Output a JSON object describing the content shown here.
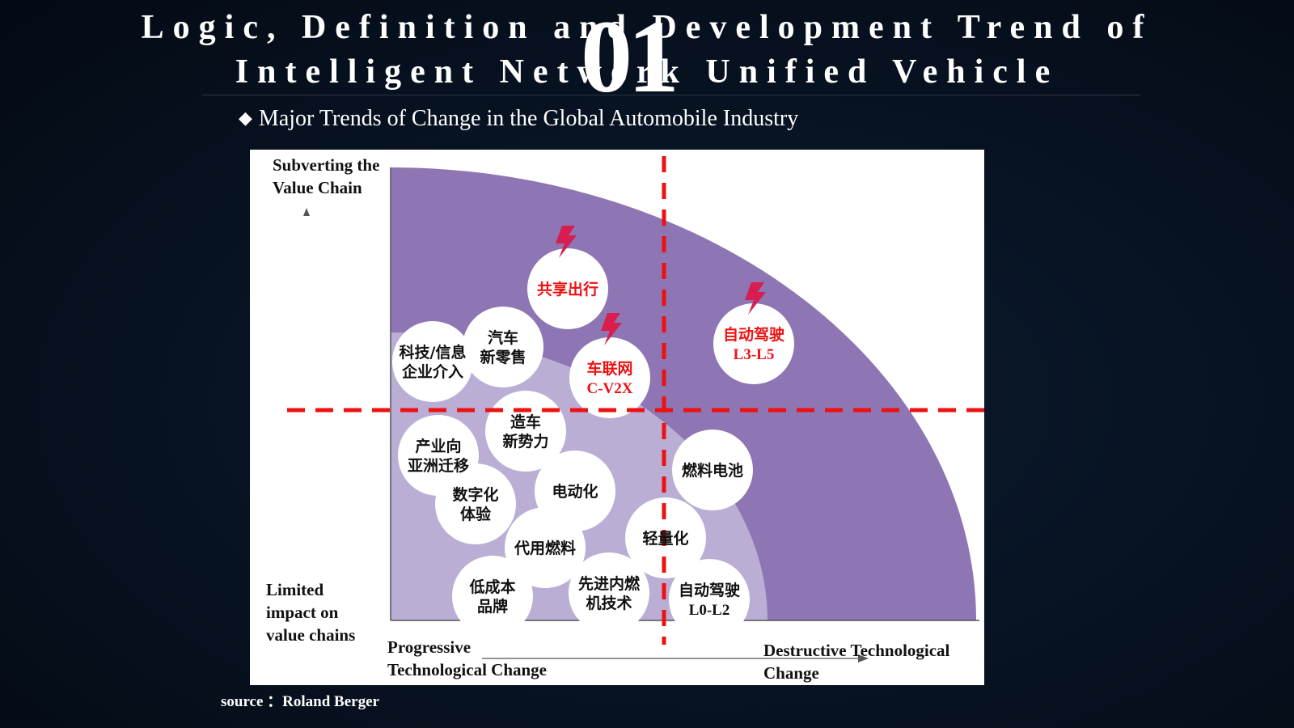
{
  "header": {
    "title_line1": "Logic, Definition and Development Trend of",
    "title_line2": "Intelligent Network Unified Vehicle",
    "section_number": "01",
    "subtitle_bullet": "◆",
    "subtitle": "Major Trends of Change in the Global Automobile Industry"
  },
  "diagram": {
    "y_axis_top_label": [
      "Subverting the",
      "Value Chain"
    ],
    "y_axis_bottom_label": [
      "Limited",
      "impact on",
      "value chains"
    ],
    "x_axis_left_label": [
      "Progressive",
      "Technological Change"
    ],
    "x_axis_right_label": [
      "Destructive Technological",
      "Change"
    ],
    "colors": {
      "outer_zone": "#8d76b3",
      "inner_zone": "#baaed5",
      "bubble": "#ffffff",
      "highlight_text": "#ee1111",
      "lightning": "#d81e50",
      "divider": "#ee1111",
      "normal_text": "#111111"
    },
    "bubbles": [
      {
        "lines": [
          "共享出行"
        ],
        "highlight": true,
        "lightning": true
      },
      {
        "lines": [
          "科技/信息",
          "企业介入"
        ],
        "highlight": false,
        "lightning": false
      },
      {
        "lines": [
          "汽车",
          "新零售"
        ],
        "highlight": false,
        "lightning": false
      },
      {
        "lines": [
          "车联网",
          "C-V2X"
        ],
        "highlight": true,
        "lightning": true
      },
      {
        "lines": [
          "自动驾驶",
          "L3-L5"
        ],
        "highlight": true,
        "lightning": true
      },
      {
        "lines": [
          "造车",
          "新势力"
        ],
        "highlight": false,
        "lightning": false
      },
      {
        "lines": [
          "产业向",
          "亚洲迁移"
        ],
        "highlight": false,
        "lightning": false
      },
      {
        "lines": [
          "燃料电池"
        ],
        "highlight": false,
        "lightning": false
      },
      {
        "lines": [
          "电动化"
        ],
        "highlight": false,
        "lightning": false
      },
      {
        "lines": [
          "数字化",
          "体验"
        ],
        "highlight": false,
        "lightning": false
      },
      {
        "lines": [
          "代用燃料"
        ],
        "highlight": false,
        "lightning": false
      },
      {
        "lines": [
          "轻量化"
        ],
        "highlight": false,
        "lightning": false
      },
      {
        "lines": [
          "低成本",
          "品牌"
        ],
        "highlight": false,
        "lightning": false
      },
      {
        "lines": [
          "先进内燃",
          "机技术"
        ],
        "highlight": false,
        "lightning": false
      },
      {
        "lines": [
          "自动驾驶",
          "L0-L2"
        ],
        "highlight": false,
        "lightning": false
      }
    ]
  },
  "footer": {
    "source": "source ：Roland Berger"
  }
}
